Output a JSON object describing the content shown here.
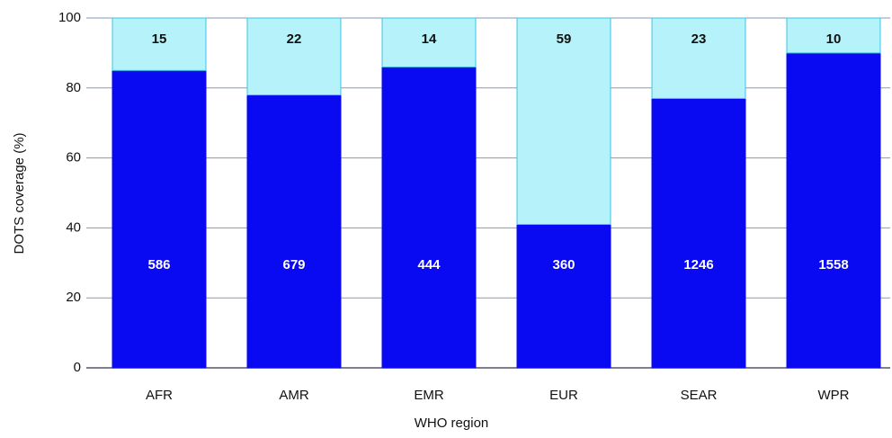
{
  "chart_data": {
    "type": "bar",
    "stacked": true,
    "categories": [
      "AFR",
      "AMR",
      "EMR",
      "EUR",
      "SEAR",
      "WPR"
    ],
    "series": [
      {
        "color": "#0a0af2",
        "values": [
          85,
          78,
          86,
          41,
          77,
          90
        ],
        "annotations": [
          586,
          679,
          444,
          360,
          1246,
          1558
        ]
      },
      {
        "color": "#b5f2fa",
        "values": [
          15,
          22,
          14,
          59,
          23,
          10
        ]
      }
    ],
    "xlabel": "WHO region",
    "ylabel": "DOTS coverage (%)",
    "ylim": [
      0,
      100
    ],
    "yticks": [
      0,
      20,
      40,
      60,
      80,
      100
    ],
    "grid": true
  }
}
